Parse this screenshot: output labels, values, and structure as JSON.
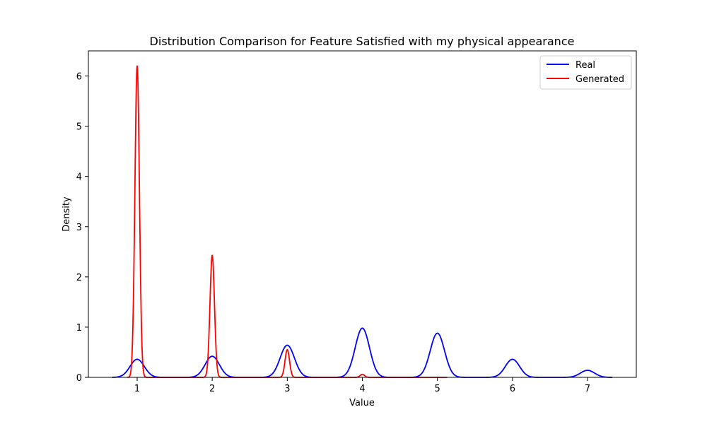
{
  "chart_data": {
    "type": "line",
    "title": "Distribution Comparison for Feature Satisfied with my physical appearance",
    "xlabel": "Value",
    "ylabel": "Density",
    "xlim": [
      0.35,
      7.65
    ],
    "ylim": [
      0,
      6.5
    ],
    "xticks": [
      1,
      2,
      3,
      4,
      5,
      6,
      7
    ],
    "yticks": [
      0,
      1,
      2,
      3,
      4,
      5,
      6
    ],
    "grid": false,
    "legend_position": "top-right",
    "series": [
      {
        "name": "Real",
        "color": "#0000ff",
        "x_range": [
          0.67,
          7.33
        ],
        "peaks": [
          {
            "x": 1,
            "y": 0.36
          },
          {
            "x": 2,
            "y": 0.42
          },
          {
            "x": 3,
            "y": 0.64
          },
          {
            "x": 4,
            "y": 0.98
          },
          {
            "x": 5,
            "y": 0.88
          },
          {
            "x": 6,
            "y": 0.36
          },
          {
            "x": 7,
            "y": 0.14
          }
        ]
      },
      {
        "name": "Generated",
        "color": "#ff0000",
        "x_range": [
          0.87,
          5.13
        ],
        "peaks": [
          {
            "x": 1,
            "y": 6.2
          },
          {
            "x": 2,
            "y": 2.43
          },
          {
            "x": 3,
            "y": 0.55
          },
          {
            "x": 4,
            "y": 0.06
          },
          {
            "x": 5,
            "y": 0.0
          }
        ]
      }
    ]
  }
}
